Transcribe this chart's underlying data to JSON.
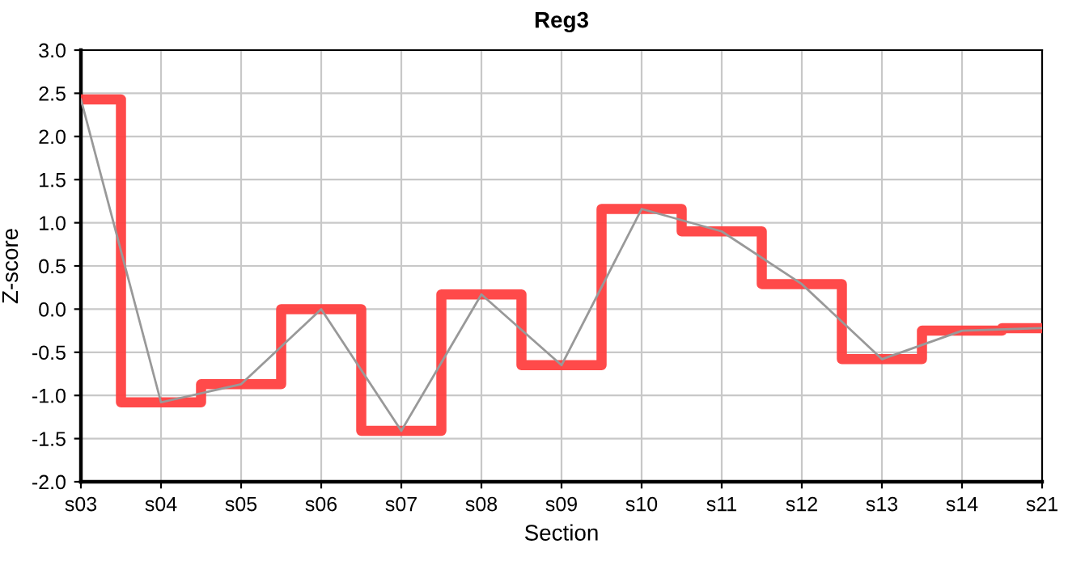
{
  "chart_data": {
    "type": "step",
    "title": "Reg3",
    "xlabel": "Section",
    "ylabel": "Z-score",
    "categories": [
      "s03",
      "s04",
      "s05",
      "s06",
      "s07",
      "s08",
      "s09",
      "s10",
      "s11",
      "s12",
      "s13",
      "s14",
      "s21"
    ],
    "series": [
      {
        "color": "#ff4040",
        "values": [
          2.43,
          -1.08,
          -0.87,
          0.0,
          -1.41,
          0.17,
          -0.65,
          1.16,
          0.9,
          0.29,
          -0.58,
          -0.25,
          -0.22
        ]
      },
      {
        "type": "line",
        "color": "#999999",
        "values": [
          2.43,
          -1.08,
          -0.87,
          0.0,
          -1.41,
          0.17,
          -0.65,
          1.16,
          0.9,
          0.29,
          -0.58,
          -0.25,
          -0.22
        ]
      }
    ],
    "ylim": [
      -2.0,
      3.0
    ],
    "yticks": [
      {
        "value": -2.0,
        "label": "-2.0"
      },
      {
        "value": -1.5,
        "label": "-1.5"
      },
      {
        "value": -1.0,
        "label": "-1.0"
      },
      {
        "value": -0.5,
        "label": "-0.5"
      },
      {
        "value": 0.0,
        "label": "0.0"
      },
      {
        "value": 0.5,
        "label": "0.5"
      },
      {
        "value": 1.0,
        "label": "1.0"
      },
      {
        "value": 1.5,
        "label": "1.5"
      },
      {
        "value": 2.0,
        "label": "2.0"
      },
      {
        "value": 2.5,
        "label": "2.5"
      },
      {
        "value": 3.0,
        "label": "3.0"
      }
    ],
    "grid": true
  }
}
